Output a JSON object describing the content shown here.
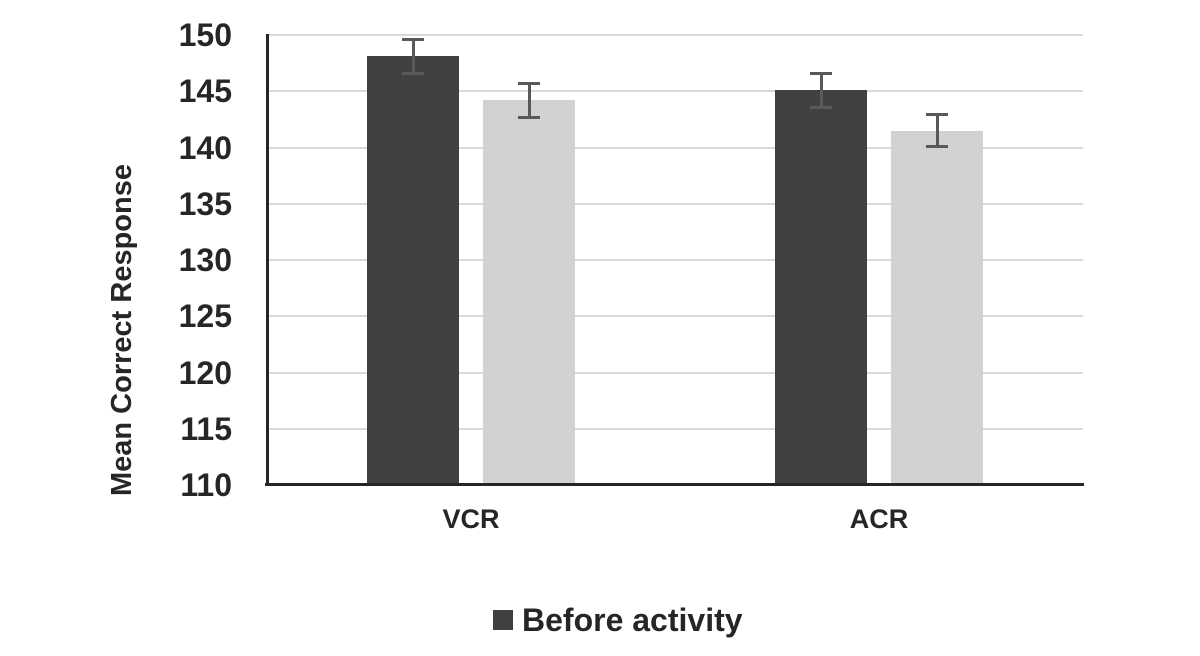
{
  "chart_data": {
    "type": "bar",
    "title": "",
    "xlabel": "",
    "ylabel": "Mean Correct Response",
    "categories": [
      "VCR",
      "ACR"
    ],
    "series": [
      {
        "name": "Before activity",
        "color": "#404040",
        "values": [
          148.1,
          145.1
        ],
        "errors": [
          1.5,
          1.5
        ]
      },
      {
        "name": "",
        "color": "#d2d2d2",
        "values": [
          144.2,
          141.5
        ],
        "errors": [
          1.5,
          1.4
        ]
      }
    ],
    "ylim": [
      110,
      150
    ],
    "yticks": [
      110,
      115,
      120,
      125,
      130,
      135,
      140,
      145,
      150
    ],
    "grid": true,
    "gridline_color": "#d9d9d9",
    "axis_color": "#262626",
    "error_bar_color": "#595959",
    "text_color": "#262626",
    "legend": {
      "position": "bottom",
      "items": [
        {
          "label": "Before activity",
          "color": "#404040"
        }
      ]
    }
  }
}
